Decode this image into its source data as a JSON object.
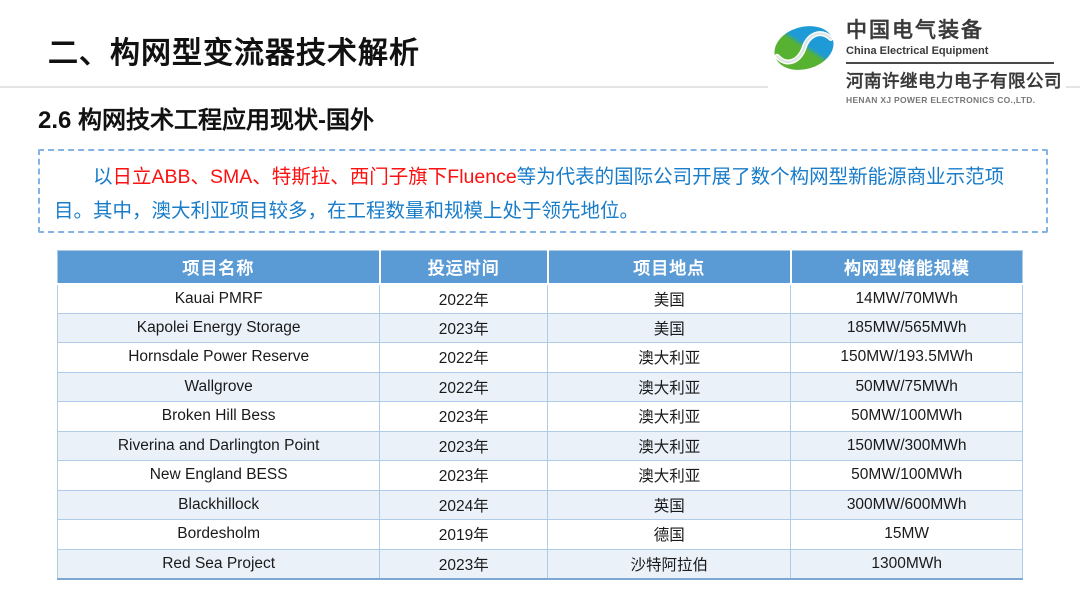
{
  "slide": {
    "title": "二、构网型变流器技术解析",
    "subtitle": "2.6 构网技术工程应用现状-国外"
  },
  "logo": {
    "icon": "green-blue-swirl-ellipse",
    "org_cn": "中国电气装备",
    "org_en": "China Electrical Equipment",
    "company_cn": "河南许继电力电子有限公司",
    "company_en": "HENAN XJ POWER ELECTRONICS CO.,LTD."
  },
  "highlight_box": {
    "lead": "以",
    "companies_red": "日立ABB、SMA、特斯拉、西门子旗下Fluence",
    "rest": "等为代表的国际公司开展了数个构网型新能源商业示范项目。其中，澳大利亚项目较多，在工程数量和规模上处于领先地位。"
  },
  "table": {
    "headers": [
      "项目名称",
      "投运时间",
      "项目地点",
      "构网型储能规模"
    ],
    "rows": [
      [
        "Kauai PMRF",
        "2022年",
        "美国",
        "14MW/70MWh"
      ],
      [
        "Kapolei Energy Storage",
        "2023年",
        "美国",
        "185MW/565MWh"
      ],
      [
        "Hornsdale Power Reserve",
        "2022年",
        "澳大利亚",
        "150MW/193.5MWh"
      ],
      [
        "Wallgrove",
        "2022年",
        "澳大利亚",
        "50MW/75MWh"
      ],
      [
        "Broken Hill Bess",
        "2023年",
        "澳大利亚",
        "50MW/100MWh"
      ],
      [
        "Riverina and Darlington Point",
        "2023年",
        "澳大利亚",
        "150MW/300MWh"
      ],
      [
        "New England BESS",
        "2023年",
        "澳大利亚",
        "50MW/100MWh"
      ],
      [
        "Blackhillock",
        "2024年",
        "英国",
        "300MW/600MWh"
      ],
      [
        "Bordesholm",
        "2019年",
        "德国",
        "15MW"
      ],
      [
        "Red Sea Project",
        "2023年",
        "沙特阿拉伯",
        "1300MWh"
      ]
    ]
  },
  "colors": {
    "header_bg": "#5b9bd5",
    "row_alt_bg": "#eaf1f9",
    "table_border": "#aecbe8",
    "text_blue": "#187cc9",
    "text_red": "#fb1111",
    "logo_green": "#5cb434",
    "logo_blue": "#1e9ad6"
  }
}
